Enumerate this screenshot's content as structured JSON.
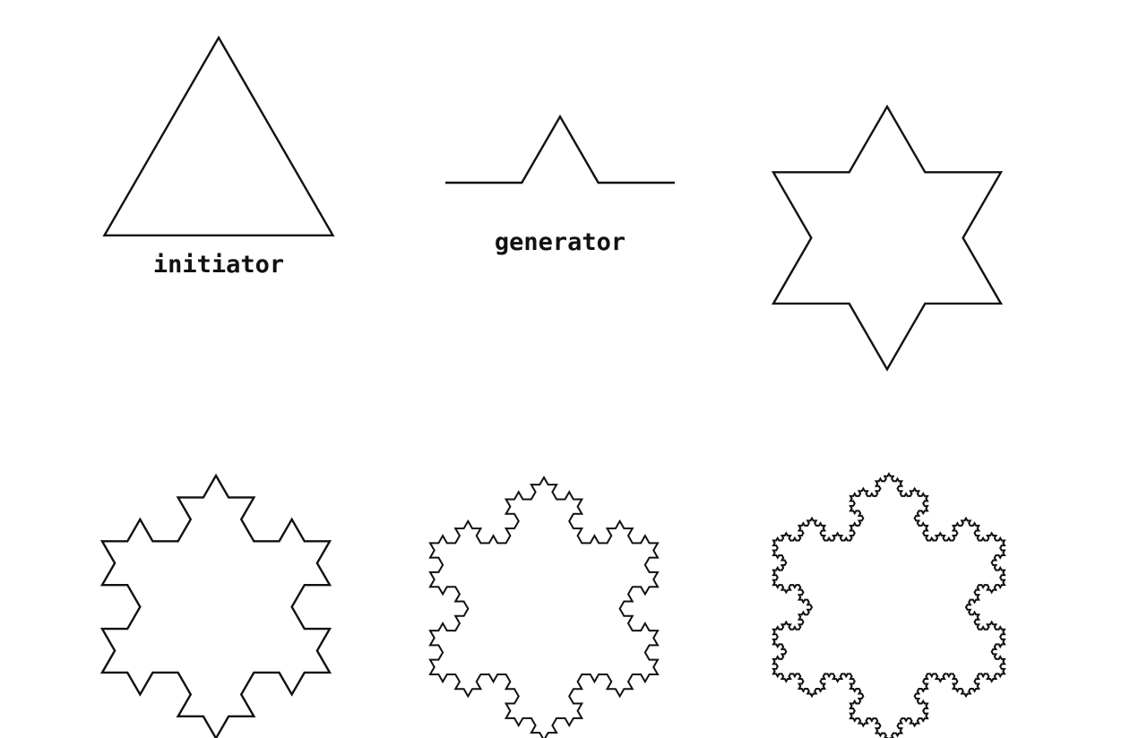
{
  "labels": {
    "initiator": "initiator",
    "generator": "generator"
  },
  "colors": {
    "line": "#111111",
    "background": "#ffffff"
  }
}
